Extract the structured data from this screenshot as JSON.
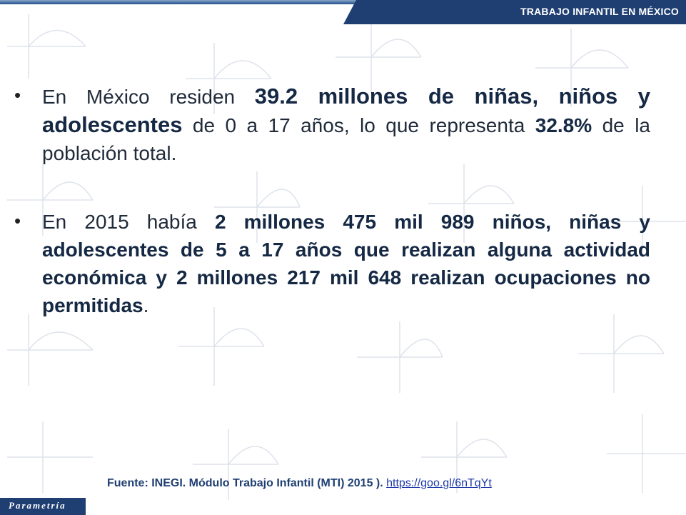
{
  "header": {
    "title": "TRABAJO INFANTIL EN MÉXICO"
  },
  "bullets": [
    {
      "t1": "En México residen ",
      "b1": "39.2 millones de niñas, niños y adolescentes",
      "t2": " de 0 a 17 años, lo que representa ",
      "b2": "32.8%",
      "t3": " de la población total."
    },
    {
      "t1": "En 2015 había ",
      "b1": "2 millones 475 mil 989 niños, niñas y adolescentes de 5 a 17 años que realizan alguna actividad económica y 2 millones 217 mil 648 realizan ocupaciones no permitidas",
      "t2": "."
    }
  ],
  "source": {
    "label": "Fuente: INEGI. Módulo Trabajo Infantil (MTI) 2015 ). ",
    "link": "https://goo.gl/6nTqYt"
  },
  "logo": {
    "text": "Parametría"
  },
  "colors": {
    "navy": "#1f3f73",
    "text": "#1f2a3a",
    "link": "#1e3aa8"
  }
}
